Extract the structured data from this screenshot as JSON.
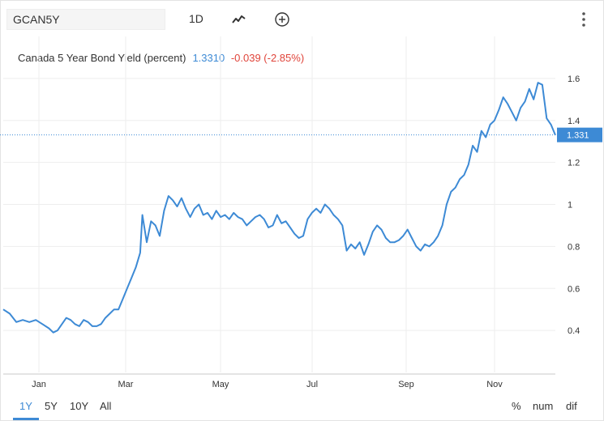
{
  "toolbar": {
    "symbol": "GCAN5Y",
    "interval": "1D",
    "chart_style_icon": "line-chart-icon",
    "add_icon": "plus-circle-icon",
    "menu_icon": "more-vertical-icon"
  },
  "legend": {
    "title": "Canada 5 Year Bond Yield (percent)",
    "value": "1.3310",
    "change": "-0.039 (-2.85%)"
  },
  "price_label": "1.331",
  "colors": {
    "line": "#3d8ad5",
    "price_line": "#3d8ad5",
    "change_negative": "#e0443a",
    "grid": "#eeeeee"
  },
  "bottom": {
    "ranges": [
      "1Y",
      "5Y",
      "10Y",
      "All"
    ],
    "active_range": "1Y",
    "options": [
      "%",
      "num",
      "dif"
    ]
  },
  "chart_data": {
    "type": "line",
    "title": "Canada 5 Year Bond Yield (percent)",
    "x_labels": [
      "Jan",
      "Mar",
      "May",
      "Jul",
      "Sep",
      "Nov"
    ],
    "y_ticks": [
      "0.4",
      "0.6",
      "0.8",
      "1",
      "1.2",
      "1.4",
      "1.6"
    ],
    "ylim": [
      0.2,
      1.8
    ],
    "last_value": 1.331,
    "x_units": "trading day index (0 = early Dec of prior year, 248 = mid Dec)",
    "series": [
      {
        "points": [
          [
            0,
            0.5
          ],
          [
            3,
            0.48
          ],
          [
            6,
            0.44
          ],
          [
            9,
            0.45
          ],
          [
            12,
            0.44
          ],
          [
            15,
            0.45
          ],
          [
            18,
            0.43
          ],
          [
            21,
            0.41
          ],
          [
            23,
            0.39
          ],
          [
            25,
            0.4
          ],
          [
            27,
            0.43
          ],
          [
            29,
            0.46
          ],
          [
            31,
            0.45
          ],
          [
            33,
            0.43
          ],
          [
            35,
            0.42
          ],
          [
            37,
            0.45
          ],
          [
            39,
            0.44
          ],
          [
            41,
            0.42
          ],
          [
            43,
            0.42
          ],
          [
            45,
            0.43
          ],
          [
            47,
            0.46
          ],
          [
            49,
            0.48
          ],
          [
            51,
            0.5
          ],
          [
            53,
            0.5
          ],
          [
            55,
            0.55
          ],
          [
            57,
            0.6
          ],
          [
            59,
            0.65
          ],
          [
            61,
            0.7
          ],
          [
            63,
            0.77
          ],
          [
            64,
            0.95
          ],
          [
            66,
            0.82
          ],
          [
            68,
            0.92
          ],
          [
            70,
            0.9
          ],
          [
            72,
            0.85
          ],
          [
            74,
            0.97
          ],
          [
            76,
            1.04
          ],
          [
            78,
            1.02
          ],
          [
            80,
            0.99
          ],
          [
            82,
            1.03
          ],
          [
            84,
            0.98
          ],
          [
            86,
            0.94
          ],
          [
            88,
            0.98
          ],
          [
            90,
            1.0
          ],
          [
            92,
            0.95
          ],
          [
            94,
            0.96
          ],
          [
            96,
            0.93
          ],
          [
            98,
            0.97
          ],
          [
            100,
            0.94
          ],
          [
            102,
            0.95
          ],
          [
            104,
            0.93
          ],
          [
            106,
            0.96
          ],
          [
            108,
            0.94
          ],
          [
            110,
            0.93
          ],
          [
            112,
            0.9
          ],
          [
            114,
            0.92
          ],
          [
            116,
            0.94
          ],
          [
            118,
            0.95
          ],
          [
            120,
            0.93
          ],
          [
            122,
            0.89
          ],
          [
            124,
            0.9
          ],
          [
            126,
            0.95
          ],
          [
            128,
            0.91
          ],
          [
            130,
            0.92
          ],
          [
            132,
            0.89
          ],
          [
            134,
            0.86
          ],
          [
            136,
            0.84
          ],
          [
            138,
            0.85
          ],
          [
            140,
            0.93
          ],
          [
            142,
            0.96
          ],
          [
            144,
            0.98
          ],
          [
            146,
            0.96
          ],
          [
            148,
            1.0
          ],
          [
            150,
            0.98
          ],
          [
            152,
            0.95
          ],
          [
            154,
            0.93
          ],
          [
            156,
            0.9
          ],
          [
            158,
            0.78
          ],
          [
            160,
            0.81
          ],
          [
            162,
            0.79
          ],
          [
            164,
            0.82
          ],
          [
            166,
            0.76
          ],
          [
            168,
            0.81
          ],
          [
            170,
            0.87
          ],
          [
            172,
            0.9
          ],
          [
            174,
            0.88
          ],
          [
            176,
            0.84
          ],
          [
            178,
            0.82
          ],
          [
            180,
            0.82
          ],
          [
            182,
            0.83
          ],
          [
            184,
            0.85
          ],
          [
            186,
            0.88
          ],
          [
            188,
            0.84
          ],
          [
            190,
            0.8
          ],
          [
            192,
            0.78
          ],
          [
            194,
            0.81
          ],
          [
            196,
            0.8
          ],
          [
            198,
            0.82
          ],
          [
            200,
            0.85
          ],
          [
            202,
            0.9
          ],
          [
            204,
            1.0
          ],
          [
            206,
            1.06
          ],
          [
            208,
            1.08
          ],
          [
            210,
            1.12
          ],
          [
            212,
            1.14
          ],
          [
            214,
            1.19
          ],
          [
            216,
            1.28
          ],
          [
            218,
            1.25
          ],
          [
            220,
            1.35
          ],
          [
            222,
            1.32
          ],
          [
            224,
            1.38
          ],
          [
            226,
            1.4
          ],
          [
            228,
            1.45
          ],
          [
            230,
            1.51
          ],
          [
            232,
            1.48
          ],
          [
            234,
            1.44
          ],
          [
            236,
            1.4
          ],
          [
            238,
            1.46
          ],
          [
            240,
            1.49
          ],
          [
            242,
            1.55
          ],
          [
            244,
            1.5
          ],
          [
            246,
            1.58
          ],
          [
            248,
            1.57
          ],
          [
            250,
            1.41
          ],
          [
            252,
            1.38
          ],
          [
            254,
            1.33
          ]
        ]
      }
    ]
  }
}
